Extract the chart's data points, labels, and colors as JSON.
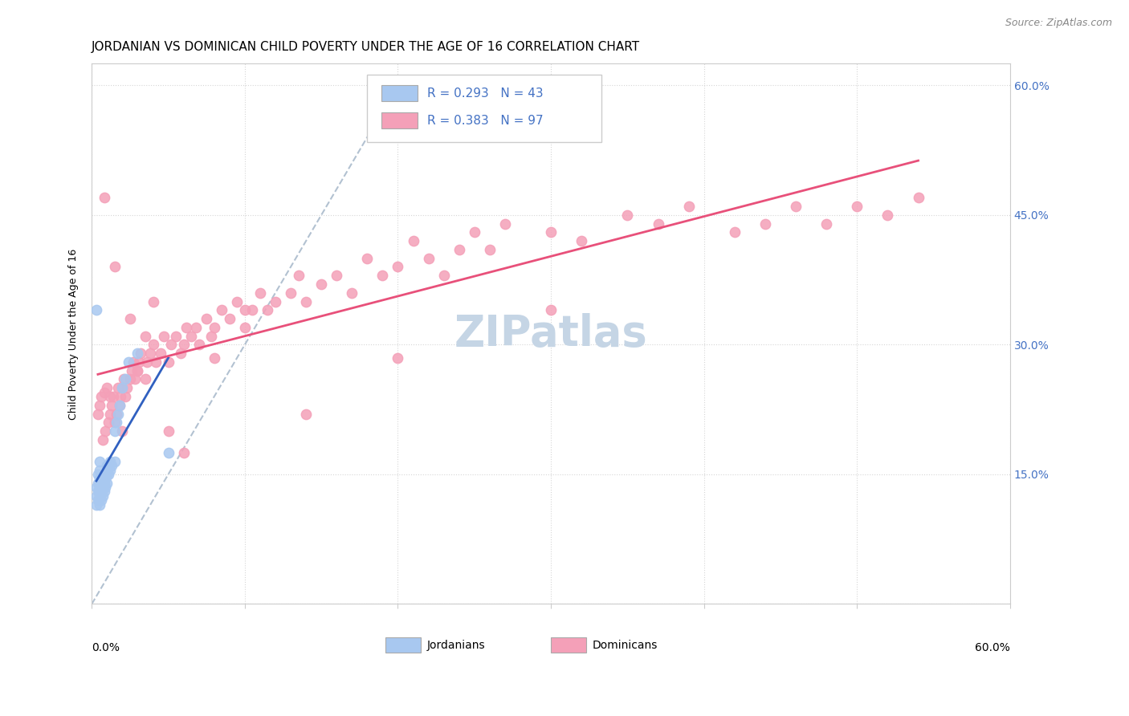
{
  "title": "JORDANIAN VS DOMINICAN CHILD POVERTY UNDER THE AGE OF 16 CORRELATION CHART",
  "source": "Source: ZipAtlas.com",
  "ylabel": "Child Poverty Under the Age of 16",
  "xlim": [
    0.0,
    0.6
  ],
  "ylim": [
    0.0,
    0.625
  ],
  "jordanian_color": "#A8C8F0",
  "dominican_color": "#F4A0B8",
  "jordanian_line_color": "#3060C0",
  "dominican_line_color": "#E8507A",
  "dashed_line_color": "#AABBCC",
  "background_color": "#FFFFFF",
  "watermark_text": "ZIPatlas",
  "watermark_color": "#C5D5E5",
  "title_fontsize": 11,
  "source_fontsize": 9,
  "ylabel_fontsize": 9,
  "legend_fontsize": 11,
  "watermark_fontsize": 38,
  "scatter_size": 80,
  "jordanians_x": [
    0.003,
    0.003,
    0.003,
    0.004,
    0.004,
    0.004,
    0.004,
    0.005,
    0.005,
    0.005,
    0.005,
    0.005,
    0.005,
    0.006,
    0.006,
    0.006,
    0.007,
    0.007,
    0.007,
    0.008,
    0.008,
    0.008,
    0.009,
    0.009,
    0.01,
    0.01,
    0.01,
    0.011,
    0.011,
    0.012,
    0.012,
    0.013,
    0.015,
    0.015,
    0.016,
    0.017,
    0.018,
    0.02,
    0.022,
    0.024,
    0.03,
    0.05,
    0.003
  ],
  "jordanians_y": [
    0.115,
    0.125,
    0.135,
    0.12,
    0.13,
    0.14,
    0.15,
    0.115,
    0.125,
    0.135,
    0.145,
    0.155,
    0.165,
    0.12,
    0.13,
    0.14,
    0.125,
    0.135,
    0.145,
    0.13,
    0.14,
    0.15,
    0.135,
    0.145,
    0.14,
    0.15,
    0.16,
    0.15,
    0.16,
    0.155,
    0.165,
    0.16,
    0.165,
    0.2,
    0.21,
    0.22,
    0.23,
    0.25,
    0.26,
    0.28,
    0.29,
    0.175,
    0.34
  ],
  "dominicans_x": [
    0.004,
    0.005,
    0.006,
    0.007,
    0.008,
    0.009,
    0.01,
    0.011,
    0.012,
    0.013,
    0.014,
    0.015,
    0.016,
    0.017,
    0.018,
    0.019,
    0.02,
    0.021,
    0.022,
    0.023,
    0.025,
    0.026,
    0.027,
    0.028,
    0.03,
    0.031,
    0.032,
    0.035,
    0.036,
    0.038,
    0.04,
    0.042,
    0.045,
    0.047,
    0.05,
    0.052,
    0.055,
    0.058,
    0.06,
    0.062,
    0.065,
    0.068,
    0.07,
    0.075,
    0.078,
    0.08,
    0.085,
    0.09,
    0.095,
    0.1,
    0.105,
    0.11,
    0.115,
    0.12,
    0.13,
    0.135,
    0.14,
    0.15,
    0.16,
    0.17,
    0.18,
    0.19,
    0.2,
    0.21,
    0.22,
    0.23,
    0.24,
    0.25,
    0.26,
    0.27,
    0.3,
    0.32,
    0.35,
    0.37,
    0.39,
    0.42,
    0.44,
    0.46,
    0.48,
    0.5,
    0.52,
    0.54,
    0.008,
    0.012,
    0.015,
    0.02,
    0.025,
    0.03,
    0.035,
    0.04,
    0.05,
    0.06,
    0.08,
    0.1,
    0.14,
    0.2,
    0.3
  ],
  "dominicans_y": [
    0.22,
    0.23,
    0.24,
    0.19,
    0.245,
    0.2,
    0.25,
    0.21,
    0.22,
    0.23,
    0.24,
    0.21,
    0.22,
    0.25,
    0.23,
    0.24,
    0.25,
    0.26,
    0.24,
    0.25,
    0.26,
    0.27,
    0.28,
    0.26,
    0.27,
    0.28,
    0.29,
    0.26,
    0.28,
    0.29,
    0.3,
    0.28,
    0.29,
    0.31,
    0.28,
    0.3,
    0.31,
    0.29,
    0.3,
    0.32,
    0.31,
    0.32,
    0.3,
    0.33,
    0.31,
    0.32,
    0.34,
    0.33,
    0.35,
    0.32,
    0.34,
    0.36,
    0.34,
    0.35,
    0.36,
    0.38,
    0.35,
    0.37,
    0.38,
    0.36,
    0.4,
    0.38,
    0.39,
    0.42,
    0.4,
    0.38,
    0.41,
    0.43,
    0.41,
    0.44,
    0.43,
    0.42,
    0.45,
    0.44,
    0.46,
    0.43,
    0.44,
    0.46,
    0.44,
    0.46,
    0.45,
    0.47,
    0.47,
    0.24,
    0.39,
    0.2,
    0.33,
    0.27,
    0.31,
    0.35,
    0.2,
    0.175,
    0.285,
    0.34,
    0.22,
    0.285,
    0.34
  ]
}
